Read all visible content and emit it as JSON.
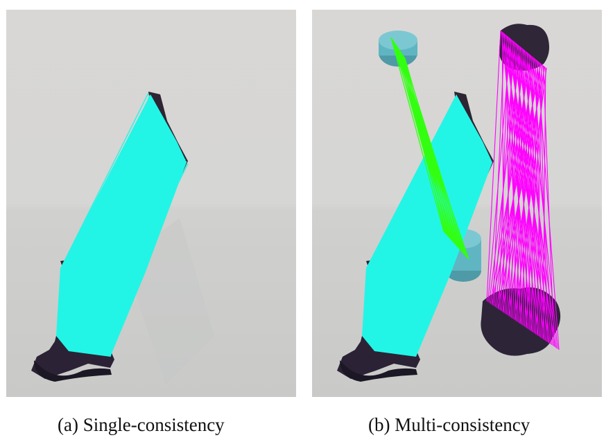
{
  "figure": {
    "captions": {
      "a": "(a) Single-consistency",
      "b": "(b) Multi-consistency"
    },
    "colors": {
      "cyan_matches": "#22f5e6",
      "green_matches": "#33ff11",
      "magenta_matches": "#ff00ff",
      "wall": "#dad9d7",
      "table": "#d3d3d1",
      "object_dark": "#2c2236",
      "tin_blue": "#5fb6c2"
    }
  }
}
